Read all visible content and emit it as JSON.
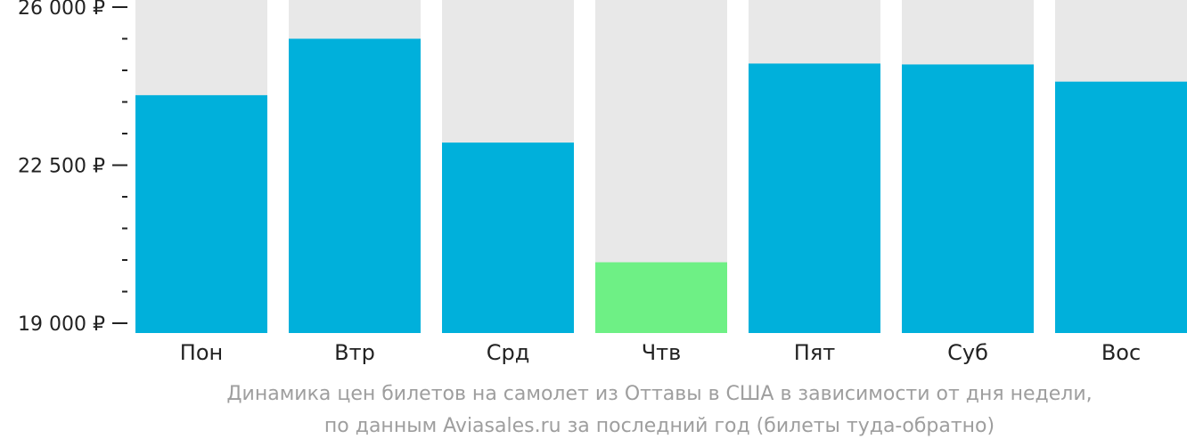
{
  "chart_data": {
    "type": "bar",
    "categories": [
      "Пон",
      "Втр",
      "Срд",
      "Чтв",
      "Пят",
      "Суб",
      "Вос"
    ],
    "values": [
      24050,
      25300,
      23000,
      20350,
      24750,
      24730,
      24350
    ],
    "ylim": [
      19000,
      26000
    ],
    "y_tick_labels": [
      {
        "value": 26000,
        "label": "26 000 ₽"
      },
      {
        "value": 22500,
        "label": "22 500 ₽"
      },
      {
        "value": 19000,
        "label": "19 000 ₽"
      }
    ],
    "minor_tick_step": 700,
    "colors": {
      "bar": "#00b0db",
      "highlight": "#6ef085",
      "background_bar": "#e8e8e8",
      "axis": "#222222"
    },
    "highlight_index": 3
  },
  "caption": {
    "line1": "Динамика цен билетов на самолет из Оттавы в США в зависимости от дня недели,",
    "line2": "по данным Aviasales.ru за последний год (билеты туда-обратно)"
  }
}
